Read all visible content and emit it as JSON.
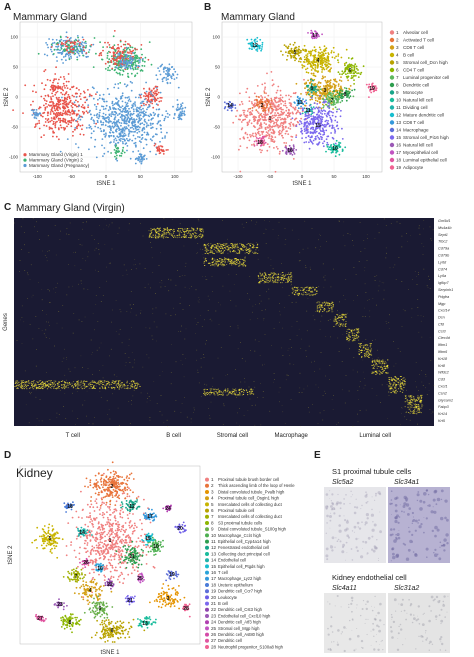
{
  "panelA": {
    "label": "A",
    "title": "Mammary Gland",
    "xlabel": "tSNE 1",
    "ylabel": "tSNE 2",
    "xticks": [
      "-100",
      "-50",
      "0",
      "50",
      "100"
    ],
    "yticks": [
      "100",
      "50",
      "0",
      "-50",
      "-100"
    ],
    "legend": [
      {
        "label": "Mammary Gland (Virgin) 1",
        "color": "#e8534a"
      },
      {
        "label": "Mammary Gland (Virgin) 2",
        "color": "#3cb371"
      },
      {
        "label": "Mammary Gland (Pregnancy)",
        "color": "#5b9bd5"
      }
    ]
  },
  "panelB": {
    "label": "B",
    "title": "Mammary Gland",
    "xlabel": "tSNE 1",
    "ylabel": "tSNE 2",
    "xticks": [
      "-100",
      "-50",
      "0",
      "50",
      "100"
    ],
    "yticks": [
      "100",
      "50",
      "0",
      "-50",
      "-100"
    ],
    "legend": [
      {
        "n": "1",
        "label": "Alveolar cell",
        "color": "#f08080"
      },
      {
        "n": "2",
        "label": "Activated T cell",
        "color": "#e8743b"
      },
      {
        "n": "3",
        "label": "CD8 T cell",
        "color": "#d4a017"
      },
      {
        "n": "4",
        "label": "B cell",
        "color": "#c8b400"
      },
      {
        "n": "5",
        "label": "Stromal cell_Dcn high",
        "color": "#b8a200"
      },
      {
        "n": "6",
        "label": "CD4 T cell",
        "color": "#8db600"
      },
      {
        "n": "7",
        "label": "Luminal progenitor cell",
        "color": "#5cb85c"
      },
      {
        "n": "8",
        "label": "Dendritic cell",
        "color": "#2e9e4f"
      },
      {
        "n": "9",
        "label": "Monocyte",
        "color": "#17a589"
      },
      {
        "n": "10",
        "label": "Natural kill cell",
        "color": "#1abc9c"
      },
      {
        "n": "11",
        "label": "Dividing cell",
        "color": "#20b2aa"
      },
      {
        "n": "12",
        "label": "Mature dendritic cell",
        "color": "#17becf"
      },
      {
        "n": "13",
        "label": "CD8 T cell",
        "color": "#3498db"
      },
      {
        "n": "14",
        "label": "Macrophage",
        "color": "#5d6ed8"
      },
      {
        "n": "15",
        "label": "Stromal cell_Pi16 high",
        "color": "#7b68ee"
      },
      {
        "n": "16",
        "label": "Natural kill cell",
        "color": "#9b59b6"
      },
      {
        "n": "17",
        "label": "Myoepithelial cell",
        "color": "#c154c1"
      },
      {
        "n": "18",
        "label": "Luminal epithelial cell",
        "color": "#e056a0"
      },
      {
        "n": "19",
        "label": "Adipocyte",
        "color": "#f06292"
      }
    ],
    "cluster_labels": [
      "1",
      "2",
      "3",
      "4",
      "5",
      "6",
      "7",
      "8",
      "9",
      "10",
      "11",
      "12",
      "13",
      "14",
      "15",
      "16",
      "17",
      "18",
      "19"
    ]
  },
  "panelC": {
    "label": "C",
    "title": "Mammary Gland (Virgin)",
    "ylabel": "Genes",
    "groups": [
      "T cell",
      "B cell",
      "Stromal cell",
      "Macrophage",
      "Luminal cell"
    ],
    "genes": [
      "Gm5d1",
      "Ms4a4b",
      "Sept1",
      "Trbc2",
      "Cd79a",
      "Cd79b",
      "Ly6d",
      "Cd74",
      "Ly6a",
      "Igfbp7",
      "Serpinh1",
      "Pdgfra",
      "Mgp",
      "Cxcl14",
      "Dcn",
      "Cfd",
      "Ccl3",
      "Clec4d",
      "Ifitm1",
      "Ifitm6",
      "Krt18",
      "Krt8",
      "Wfdc2",
      "Cd3",
      "Cxcl1",
      "Csn2",
      "Glycam1",
      "Fabp3",
      "Krt14",
      "Krt5"
    ]
  },
  "panelD": {
    "label": "D",
    "title": "Kidney",
    "xlabel": "tSNE 1",
    "ylabel": "tSNE 2",
    "legend": [
      {
        "n": "1",
        "label": "Proximal tubule brush border cell",
        "color": "#f08080"
      },
      {
        "n": "2",
        "label": "Thick ascending limb of the loop of Henle",
        "color": "#e8743b"
      },
      {
        "n": "3",
        "label": "Distal convoluted tubule_Pvalb high",
        "color": "#e59400"
      },
      {
        "n": "4",
        "label": "Proximal tubule cell_Osgin1 high",
        "color": "#d4a017"
      },
      {
        "n": "5",
        "label": "Intercalated cells of collecting duct",
        "color": "#c8b400"
      },
      {
        "n": "6",
        "label": "Proximal tubule cell",
        "color": "#b8a200"
      },
      {
        "n": "7",
        "label": "Intercalated cells of collecting duct",
        "color": "#a0b000"
      },
      {
        "n": "8",
        "label": "S3 proximal tubule cells",
        "color": "#8db600"
      },
      {
        "n": "9",
        "label": "Distal convoluted tubule_S100g high",
        "color": "#6ab04c"
      },
      {
        "n": "10",
        "label": "Macrophage_Ccl4 high",
        "color": "#4caf50"
      },
      {
        "n": "11",
        "label": "Epithelial cell_Cyp4a14 high",
        "color": "#2e9e4f"
      },
      {
        "n": "12",
        "label": "Fenestrated endothelial cell",
        "color": "#17a589"
      },
      {
        "n": "13",
        "label": "Collecting duct principal cell",
        "color": "#1abc9c"
      },
      {
        "n": "14",
        "label": "Endothelial cell",
        "color": "#20b2aa"
      },
      {
        "n": "15",
        "label": "Epithelial cell_Ptgds high",
        "color": "#17becf"
      },
      {
        "n": "16",
        "label": "T cell",
        "color": "#29a3d9"
      },
      {
        "n": "17",
        "label": "Macrophage_Lyz2 high",
        "color": "#3498db"
      },
      {
        "n": "18",
        "label": "Ureteric epithelium",
        "color": "#4a7bd8"
      },
      {
        "n": "19",
        "label": "Dendritic cell_Ccr7 high",
        "color": "#5d6ed8"
      },
      {
        "n": "20",
        "label": "Leukocyte",
        "color": "#6c5ce7"
      },
      {
        "n": "21",
        "label": "B cell",
        "color": "#7b68ee"
      },
      {
        "n": "22",
        "label": "Dendritic cell_Cst3 high",
        "color": "#8e44ad"
      },
      {
        "n": "23",
        "label": "Endothelial cell_Cxcl10 high",
        "color": "#9b59b6"
      },
      {
        "n": "24",
        "label": "Dendritic cell_Atf3 high",
        "color": "#b03fb0"
      },
      {
        "n": "25",
        "label": "Stromal cell_Mgp high",
        "color": "#c154c1"
      },
      {
        "n": "26",
        "label": "Dendritic cell_Ast80 high",
        "color": "#d44aa8"
      },
      {
        "n": "27",
        "label": "Dendritic cell",
        "color": "#e056a0"
      },
      {
        "n": "28",
        "label": "Neutrophil progenitor_S100a8 high",
        "color": "#f06292"
      }
    ],
    "cluster_labels": [
      "1",
      "2",
      "3",
      "4",
      "5",
      "6",
      "7",
      "8",
      "9",
      "10",
      "11",
      "12",
      "13",
      "14",
      "15",
      "16",
      "17",
      "18",
      "19",
      "20",
      "21",
      "22",
      "23",
      "24",
      "25",
      "26",
      "27",
      "28"
    ]
  },
  "panelE": {
    "label": "E",
    "title1": "S1 proximal tubule cells",
    "genes1": [
      "Slc5a2",
      "Slc34a1"
    ],
    "title2": "Kidney endothelial cell",
    "genes2": [
      "Slc4a11",
      "Slc31a2"
    ]
  },
  "colors": {
    "heatmap_bg": "#1a1a33",
    "heatmap_hi": "#f2e33a",
    "grid": "#e6e6e6"
  }
}
